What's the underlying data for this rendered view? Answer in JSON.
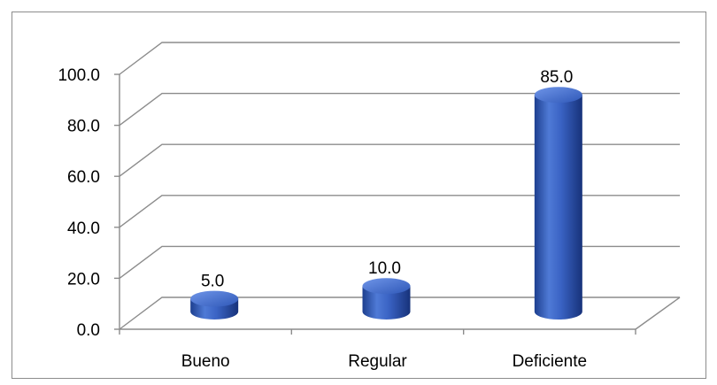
{
  "chart_data": {
    "type": "bar",
    "style": "3d-cylinder",
    "categories": [
      "Bueno",
      "Regular",
      "Deficiente"
    ],
    "values": [
      5.0,
      10.0,
      85.0
    ],
    "data_labels": [
      "5.0",
      "10.0",
      "85.0"
    ],
    "title": "",
    "xlabel": "",
    "ylabel": "",
    "ylim": [
      0,
      100
    ],
    "yticks": [
      "0.0",
      "20.0",
      "40.0",
      "60.0",
      "80.0",
      "100.0"
    ],
    "grid": true,
    "legend": "none",
    "bar_color": "#3a63c4"
  }
}
